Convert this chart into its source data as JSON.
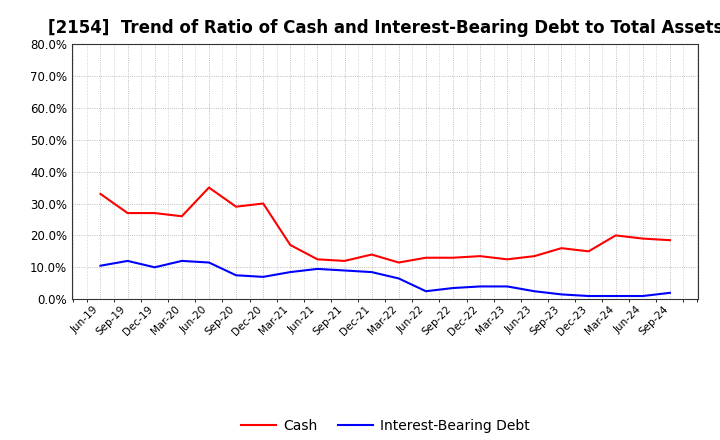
{
  "title": "[2154]  Trend of Ratio of Cash and Interest-Bearing Debt to Total Assets",
  "x_labels": [
    "Jun-19",
    "Sep-19",
    "Dec-19",
    "Mar-20",
    "Jun-20",
    "Sep-20",
    "Dec-20",
    "Mar-21",
    "Jun-21",
    "Sep-21",
    "Dec-21",
    "Mar-22",
    "Jun-22",
    "Sep-22",
    "Dec-22",
    "Mar-23",
    "Jun-23",
    "Sep-23",
    "Dec-23",
    "Mar-24",
    "Jun-24",
    "Sep-24"
  ],
  "cash": [
    0.33,
    0.27,
    0.27,
    0.26,
    0.35,
    0.29,
    0.3,
    0.17,
    0.125,
    0.12,
    0.14,
    0.115,
    0.13,
    0.13,
    0.135,
    0.125,
    0.135,
    0.16,
    0.15,
    0.2,
    0.19,
    0.185
  ],
  "ibd": [
    0.105,
    0.12,
    0.1,
    0.12,
    0.115,
    0.075,
    0.07,
    0.085,
    0.095,
    0.09,
    0.085,
    0.065,
    0.025,
    0.035,
    0.04,
    0.04,
    0.025,
    0.015,
    0.01,
    0.01,
    0.01,
    0.02
  ],
  "cash_color": "#ff0000",
  "ibd_color": "#0000ff",
  "ylim": [
    0.0,
    0.8
  ],
  "yticks": [
    0.0,
    0.1,
    0.2,
    0.3,
    0.4,
    0.5,
    0.6,
    0.7,
    0.8
  ],
  "grid_color": "#aaaaaa",
  "background_color": "#ffffff",
  "plot_bg_color": "#ffffff",
  "title_fontsize": 12,
  "legend_labels": [
    "Cash",
    "Interest-Bearing Debt"
  ],
  "line_width": 1.5
}
